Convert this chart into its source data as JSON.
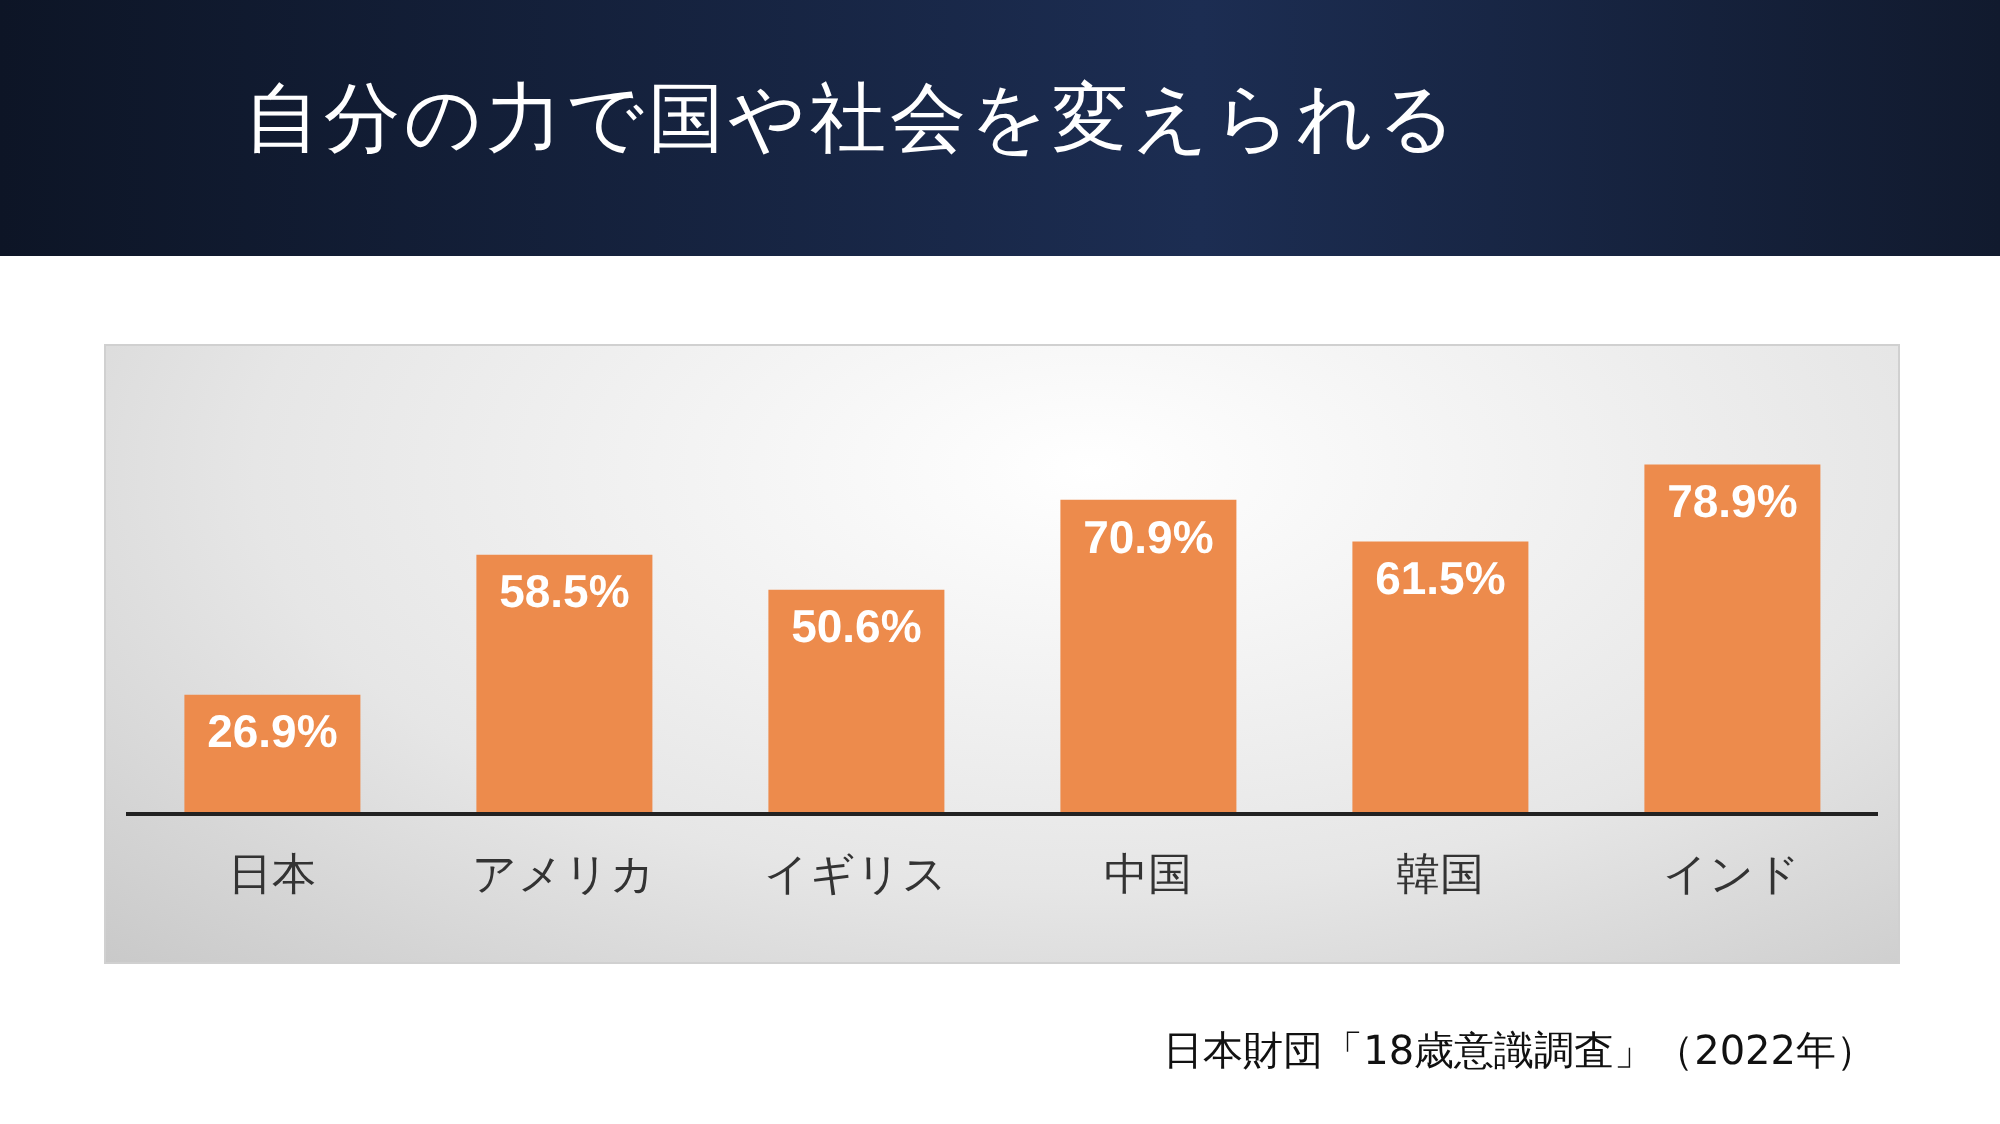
{
  "chart_data": {
    "type": "bar",
    "title": "自分の力で国や社会を変えられる",
    "categories": [
      "日本",
      "アメリカ",
      "イギリス",
      "中国",
      "韓国",
      "インド"
    ],
    "values": [
      26.9,
      58.5,
      50.6,
      70.9,
      61.5,
      78.9
    ],
    "value_labels": [
      "26.9%",
      "58.5%",
      "50.6%",
      "70.9%",
      "61.5%",
      "78.9%"
    ],
    "color": "#ed8b4c",
    "tick_labels": "x",
    "legend": false,
    "annotations": [
      "日本財団「18歳意識調査」（2022年）"
    ]
  }
}
